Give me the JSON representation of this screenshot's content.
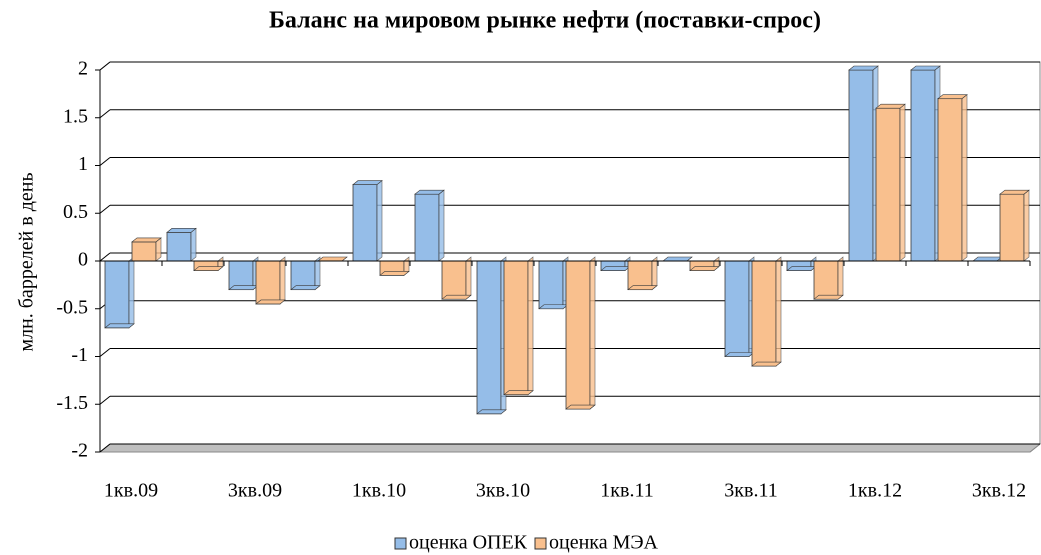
{
  "chart_data": {
    "type": "bar",
    "title": "Баланс на мировом рынке нефти (поставки-спрос)",
    "y_label": "млн. баррелей в день",
    "categories": [
      "1кв.09",
      null,
      "3кв.09",
      null,
      "1кв.10",
      null,
      "3кв.10",
      null,
      "1кв.11",
      null,
      "3кв.11",
      null,
      "1кв.12",
      null,
      "3кв.12"
    ],
    "series": [
      {
        "name": "оценка ОПЕК",
        "color": "#95bde8",
        "values": [
          -0.7,
          0.3,
          -0.3,
          -0.3,
          0.8,
          0.7,
          -1.6,
          -0.5,
          -0.1,
          0.0,
          -1.0,
          -0.1,
          2.0,
          2.0,
          0.0
        ]
      },
      {
        "name": "оценка МЭА",
        "color": "#f9c08e",
        "values": [
          0.2,
          -0.1,
          -0.45,
          0.0,
          -0.15,
          -0.4,
          -1.4,
          -1.55,
          -0.3,
          -0.1,
          -1.1,
          -0.4,
          1.6,
          1.7,
          0.7
        ]
      }
    ],
    "ylim": [
      -2,
      2
    ],
    "yticks": [
      -2,
      -1.5,
      -1,
      -0.5,
      0,
      0.5,
      1,
      1.5,
      2
    ],
    "grid": true,
    "legend": "bottom"
  }
}
